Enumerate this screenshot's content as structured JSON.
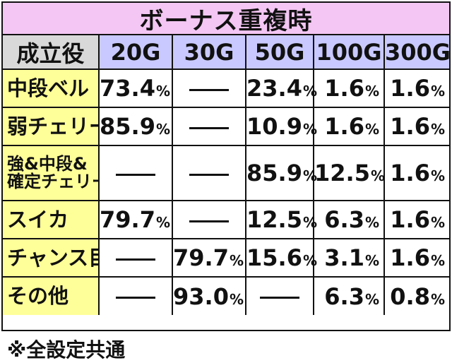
{
  "title": "ボーナス重複時",
  "header": {
    "label": "成立役",
    "columns": [
      "20G",
      "30G",
      "50G",
      "100G",
      "300G"
    ]
  },
  "dash": "—",
  "rows": [
    {
      "label": "中段ベル",
      "label_lines": [
        "中段ベル"
      ],
      "cells": [
        {
          "num": "73.4",
          "unit": "%"
        },
        {
          "num": "",
          "unit": "",
          "dash": true
        },
        {
          "num": "23.4",
          "unit": "%"
        },
        {
          "num": "1.6",
          "unit": "%"
        },
        {
          "num": "1.6",
          "unit": "%"
        }
      ]
    },
    {
      "label": "弱チェリー",
      "label_lines": [
        "弱チェリー"
      ],
      "cells": [
        {
          "num": "85.9",
          "unit": "%"
        },
        {
          "num": "",
          "unit": "",
          "dash": true
        },
        {
          "num": "10.9",
          "unit": "%"
        },
        {
          "num": "1.6",
          "unit": "%"
        },
        {
          "num": "1.6",
          "unit": "%"
        }
      ]
    },
    {
      "label": "強&中段&確定チェリー",
      "label_lines": [
        "強&中段&",
        "確定チェリー"
      ],
      "cells": [
        {
          "num": "",
          "unit": "",
          "dash": true
        },
        {
          "num": "",
          "unit": "",
          "dash": true
        },
        {
          "num": "85.9",
          "unit": "%"
        },
        {
          "num": "12.5",
          "unit": "%"
        },
        {
          "num": "1.6",
          "unit": "%"
        }
      ]
    },
    {
      "label": "スイカ",
      "label_lines": [
        "スイカ"
      ],
      "cells": [
        {
          "num": "79.7",
          "unit": "%"
        },
        {
          "num": "",
          "unit": "",
          "dash": true
        },
        {
          "num": "12.5",
          "unit": "%"
        },
        {
          "num": "6.3",
          "unit": "%"
        },
        {
          "num": "1.6",
          "unit": "%"
        }
      ]
    },
    {
      "label": "チャンス目",
      "label_lines": [
        "チャンス目"
      ],
      "cells": [
        {
          "num": "",
          "unit": "",
          "dash": true
        },
        {
          "num": "79.7",
          "unit": "%"
        },
        {
          "num": "15.6",
          "unit": "%"
        },
        {
          "num": "3.1",
          "unit": "%"
        },
        {
          "num": "1.6",
          "unit": "%"
        }
      ]
    },
    {
      "label": "その他",
      "label_lines": [
        "その他"
      ],
      "cells": [
        {
          "num": "",
          "unit": "",
          "dash": true
        },
        {
          "num": "93.0",
          "unit": "%"
        },
        {
          "num": "",
          "unit": "",
          "dash": true
        },
        {
          "num": "6.3",
          "unit": "%"
        },
        {
          "num": "0.8",
          "unit": "%"
        }
      ]
    }
  ],
  "footnote": "※全設定共通",
  "colors": {
    "title_bg": "#f3c6f3",
    "header_label_bg": "#d9d9d9",
    "header_col_bg": "#c9c9ff",
    "row_label_bg": "#ffff99",
    "border": "#111111"
  }
}
